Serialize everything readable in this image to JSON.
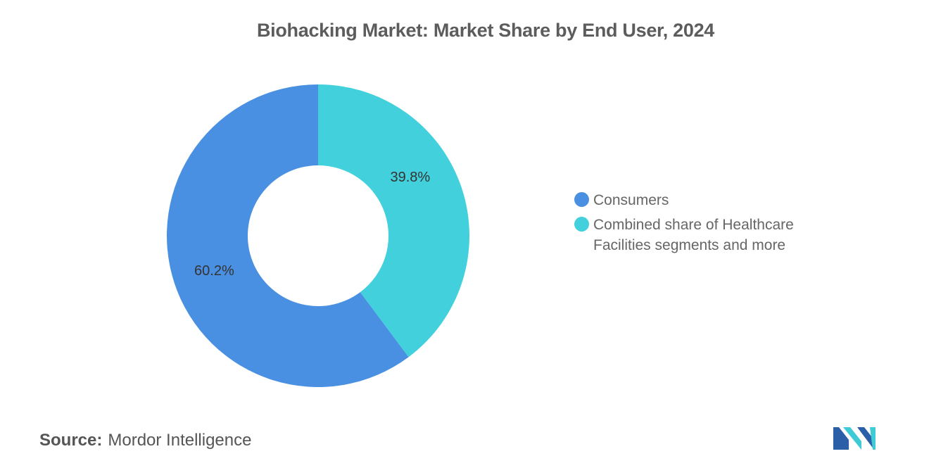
{
  "chart_data": {
    "type": "pie",
    "title": "Biohacking Market: Market Share by End User, 2024",
    "categories": [
      "Consumers",
      "Combined share of Healthcare Facilities segments and more"
    ],
    "values": [
      60.2,
      39.8
    ],
    "data_labels": [
      "60.2%",
      "39.8%"
    ],
    "colors": [
      "#4a90e2",
      "#42d1dc"
    ],
    "donut": true,
    "legend_position": "right"
  },
  "source": {
    "label": "Source:",
    "value": "Mordor Intelligence"
  },
  "logo": {
    "icon": "mordor-intelligence-logo",
    "colors": [
      "#2b5fa8",
      "#3ecbd6"
    ]
  }
}
